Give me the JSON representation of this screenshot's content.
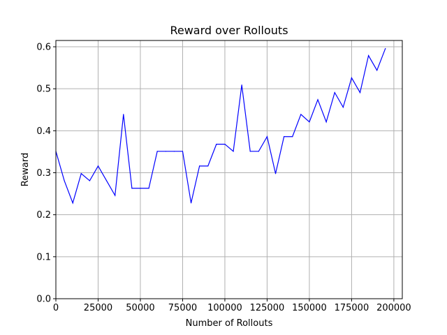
{
  "chart_data": {
    "type": "line",
    "title": "Reward over Rollouts",
    "xlabel": "Number of Rollouts",
    "ylabel": "Reward",
    "xlim": [
      0,
      205000
    ],
    "ylim": [
      0,
      0.615
    ],
    "xticks": [
      0,
      25000,
      50000,
      75000,
      100000,
      125000,
      150000,
      175000,
      200000
    ],
    "xtick_labels": [
      "0",
      "25000",
      "50000",
      "75000",
      "100000",
      "125000",
      "150000",
      "175000",
      "200000"
    ],
    "yticks": [
      0.0,
      0.1,
      0.2,
      0.3,
      0.4,
      0.5,
      0.6
    ],
    "ytick_labels": [
      "0.0",
      "0.1",
      "0.2",
      "0.3",
      "0.4",
      "0.5",
      "0.6"
    ],
    "grid": true,
    "series": [
      {
        "color": "#0000ff",
        "x": [
          0,
          5000,
          10000,
          15000,
          20000,
          25000,
          30000,
          35000,
          40000,
          45000,
          50000,
          55000,
          60000,
          65000,
          70000,
          75000,
          80000,
          85000,
          90000,
          95000,
          100000,
          105000,
          110000,
          115000,
          120000,
          125000,
          130000,
          135000,
          140000,
          145000,
          150000,
          155000,
          160000,
          165000,
          170000,
          175000,
          180000,
          185000,
          190000,
          195000
        ],
        "y": [
          0.351,
          0.281,
          0.228,
          0.298,
          0.281,
          0.316,
          0.281,
          0.246,
          0.439,
          0.263,
          0.263,
          0.263,
          0.351,
          0.351,
          0.351,
          0.351,
          0.228,
          0.316,
          0.316,
          0.368,
          0.368,
          0.351,
          0.509,
          0.351,
          0.351,
          0.386,
          0.298,
          0.386,
          0.386,
          0.439,
          0.421,
          0.474,
          0.421,
          0.491,
          0.456,
          0.526,
          0.491,
          0.579,
          0.544,
          0.596
        ]
      }
    ]
  }
}
